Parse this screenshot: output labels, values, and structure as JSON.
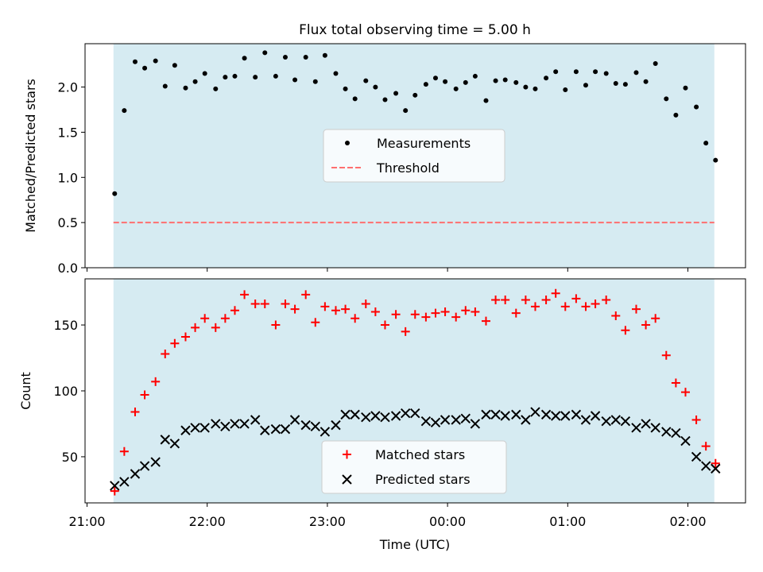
{
  "title": "Flux total observing time = 5.00 h",
  "xlabel": "Time (UTC)",
  "xticks": [
    "21:00",
    "22:00",
    "23:00",
    "00:00",
    "01:00",
    "02:00"
  ],
  "colors": {
    "shade": "#add8e6",
    "threshold": "#ff6f6f",
    "matched": "#ff0000",
    "predicted": "#000000",
    "measurements": "#000000"
  },
  "chart_data": [
    {
      "type": "scatter",
      "ylabel": "Matched/Predicted stars",
      "ylim": [
        0,
        2.48
      ],
      "yticks": [
        "0.0",
        "0.5",
        "1.0",
        "1.5",
        "2.0"
      ],
      "x_unit": "hours after 21:00 UTC",
      "shaded_span": [
        0.22,
        5.22
      ],
      "legend": {
        "placement": "center",
        "entries": [
          "Measurements",
          "Threshold"
        ]
      },
      "threshold": 0.5,
      "series": [
        {
          "name": "Measurements",
          "x": [
            0.23,
            0.31,
            0.4,
            0.48,
            0.57,
            0.65,
            0.73,
            0.82,
            0.9,
            0.98,
            1.07,
            1.15,
            1.23,
            1.31,
            1.4,
            1.48,
            1.57,
            1.65,
            1.73,
            1.82,
            1.9,
            1.98,
            2.07,
            2.15,
            2.23,
            2.32,
            2.4,
            2.48,
            2.57,
            2.65,
            2.73,
            2.82,
            2.9,
            2.98,
            3.07,
            3.15,
            3.23,
            3.32,
            3.4,
            3.48,
            3.57,
            3.65,
            3.73,
            3.82,
            3.9,
            3.98,
            4.07,
            4.15,
            4.23,
            4.32,
            4.4,
            4.48,
            4.57,
            4.65,
            4.73,
            4.82,
            4.9,
            4.98,
            5.07,
            5.15,
            5.23
          ],
          "y": [
            0.82,
            1.74,
            2.28,
            2.21,
            2.29,
            2.01,
            2.24,
            1.99,
            2.06,
            2.15,
            1.98,
            2.11,
            2.12,
            2.32,
            2.11,
            2.38,
            2.12,
            2.33,
            2.08,
            2.33,
            2.06,
            2.35,
            2.15,
            1.98,
            1.87,
            2.07,
            2.0,
            1.86,
            1.93,
            1.74,
            1.91,
            2.03,
            2.1,
            2.06,
            1.98,
            2.05,
            2.12,
            1.85,
            2.07,
            2.08,
            2.05,
            2.0,
            1.98,
            2.1,
            2.17,
            1.97,
            2.17,
            2.02,
            2.17,
            2.15,
            2.04,
            2.03,
            2.16,
            2.06,
            2.26,
            1.87,
            1.69,
            1.99,
            1.78,
            1.38,
            1.19
          ]
        }
      ]
    },
    {
      "type": "scatter",
      "ylabel": "Count",
      "ylim": [
        15,
        185
      ],
      "yticks": [
        "50",
        "100",
        "150"
      ],
      "x_unit": "hours after 21:00 UTC",
      "shaded_span": [
        0.22,
        5.22
      ],
      "legend": {
        "placement": "lower center",
        "entries": [
          "Matched stars",
          "Predicted stars"
        ]
      },
      "series": [
        {
          "name": "Matched stars",
          "x": [
            0.23,
            0.31,
            0.4,
            0.48,
            0.57,
            0.65,
            0.73,
            0.82,
            0.9,
            0.98,
            1.07,
            1.15,
            1.23,
            1.31,
            1.4,
            1.48,
            1.57,
            1.65,
            1.73,
            1.82,
            1.9,
            1.98,
            2.07,
            2.15,
            2.23,
            2.32,
            2.4,
            2.48,
            2.57,
            2.65,
            2.73,
            2.82,
            2.9,
            2.98,
            3.07,
            3.15,
            3.23,
            3.32,
            3.4,
            3.48,
            3.57,
            3.65,
            3.73,
            3.82,
            3.9,
            3.98,
            4.07,
            4.15,
            4.23,
            4.32,
            4.4,
            4.48,
            4.57,
            4.65,
            4.73,
            4.82,
            4.9,
            4.98,
            5.07,
            5.15,
            5.23
          ],
          "y": [
            24,
            54,
            84,
            97,
            107,
            128,
            136,
            141,
            148,
            155,
            148,
            155,
            161,
            173,
            166,
            166,
            150,
            166,
            162,
            173,
            152,
            164,
            161,
            162,
            155,
            166,
            160,
            150,
            158,
            145,
            158,
            156,
            159,
            160,
            156,
            161,
            160,
            153,
            169,
            169,
            159,
            169,
            164,
            169,
            174,
            164,
            170,
            164,
            166,
            169,
            157,
            146,
            162,
            150,
            155,
            127,
            106,
            99,
            78,
            58,
            45
          ]
        },
        {
          "name": "Predicted stars",
          "x": [
            0.23,
            0.31,
            0.4,
            0.48,
            0.57,
            0.65,
            0.73,
            0.82,
            0.9,
            0.98,
            1.07,
            1.15,
            1.23,
            1.31,
            1.4,
            1.48,
            1.57,
            1.65,
            1.73,
            1.82,
            1.9,
            1.98,
            2.07,
            2.15,
            2.23,
            2.32,
            2.4,
            2.48,
            2.57,
            2.65,
            2.73,
            2.82,
            2.9,
            2.98,
            3.07,
            3.15,
            3.23,
            3.32,
            3.4,
            3.48,
            3.57,
            3.65,
            3.73,
            3.82,
            3.9,
            3.98,
            4.07,
            4.15,
            4.23,
            4.32,
            4.4,
            4.48,
            4.57,
            4.65,
            4.73,
            4.82,
            4.9,
            4.98,
            5.07,
            5.15,
            5.23
          ],
          "y": [
            28,
            31,
            37,
            43,
            46,
            63,
            60,
            70,
            72,
            72,
            75,
            73,
            75,
            75,
            78,
            70,
            71,
            71,
            78,
            74,
            73,
            69,
            74,
            82,
            82,
            80,
            81,
            80,
            81,
            83,
            83,
            77,
            76,
            78,
            78,
            79,
            75,
            82,
            82,
            81,
            82,
            78,
            84,
            82,
            81,
            81,
            82,
            78,
            81,
            77,
            78,
            77,
            72,
            75,
            72,
            69,
            68,
            62,
            50,
            43,
            41
          ]
        }
      ]
    }
  ]
}
